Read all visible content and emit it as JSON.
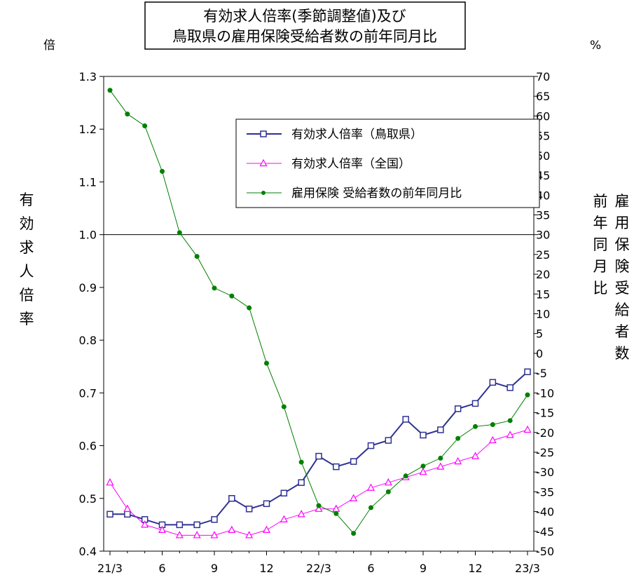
{
  "chart_data": {
    "type": "line",
    "title": [
      "有効求人倍率(季節調整値)及び",
      "鳥取県の雇用保険受給者数の前年同月比"
    ],
    "left_axis": {
      "unit": "倍",
      "label": "有効求人倍率",
      "ylim": [
        0.4,
        1.3
      ],
      "ticks": [
        "0.4",
        "0.5",
        "0.6",
        "0.7",
        "0.8",
        "0.9",
        "1.0",
        "1.1",
        "1.2",
        "1.3"
      ],
      "reference_line": 1.0
    },
    "right_axis": {
      "unit": "%",
      "label": [
        "雇用保険受給者数",
        "前年同月比"
      ],
      "ylim": [
        -50,
        70
      ],
      "ticks": [
        "-50",
        "-45",
        "-40",
        "-35",
        "-30",
        "-25",
        "-20",
        "-15",
        "-10",
        "-5",
        "0",
        "5",
        "10",
        "15",
        "20",
        "25",
        "30",
        "35",
        "40",
        "45",
        "50",
        "55",
        "60",
        "65",
        "70"
      ]
    },
    "x_ticks": [
      {
        "index": 0,
        "label": "21/3"
      },
      {
        "index": 3,
        "label": "6"
      },
      {
        "index": 6,
        "label": "9"
      },
      {
        "index": 9,
        "label": "12"
      },
      {
        "index": 12,
        "label": "22/3"
      },
      {
        "index": 15,
        "label": "6"
      },
      {
        "index": 18,
        "label": "9"
      },
      {
        "index": 21,
        "label": "12"
      },
      {
        "index": 24,
        "label": "23/3"
      }
    ],
    "x_count": 25,
    "legend_position": "top-right",
    "series": [
      {
        "name": "有効求人倍率（鳥取県）",
        "axis": "left",
        "marker": "square",
        "color": "#2e3192",
        "values": [
          0.47,
          0.47,
          0.46,
          0.45,
          0.45,
          0.45,
          0.46,
          0.5,
          0.48,
          0.49,
          0.51,
          0.53,
          0.58,
          0.56,
          0.57,
          0.6,
          0.61,
          0.65,
          0.62,
          0.63,
          0.67,
          0.68,
          0.72,
          0.71,
          0.74
        ]
      },
      {
        "name": "有効求人倍率（全国）",
        "axis": "left",
        "marker": "triangle",
        "color": "#ff00ff",
        "values": [
          0.53,
          0.48,
          0.45,
          0.44,
          0.43,
          0.43,
          0.43,
          0.44,
          0.43,
          0.44,
          0.46,
          0.47,
          0.48,
          0.48,
          0.5,
          0.52,
          0.53,
          0.54,
          0.55,
          0.56,
          0.57,
          0.58,
          0.61,
          0.62,
          0.63
        ]
      },
      {
        "name": "雇用保険 受給者数の前年同月比",
        "axis": "right",
        "marker": "dot",
        "color": "#008000",
        "values": [
          66.5,
          60.5,
          57.5,
          46,
          30.5,
          24.5,
          16.5,
          14.5,
          11.5,
          -2.5,
          -13.5,
          -27.5,
          -38.5,
          -40.5,
          -45.5,
          -39,
          -35,
          -31,
          -28.5,
          -26.5,
          -21.5,
          -18.5,
          -18,
          -17,
          -10.5
        ]
      }
    ]
  }
}
